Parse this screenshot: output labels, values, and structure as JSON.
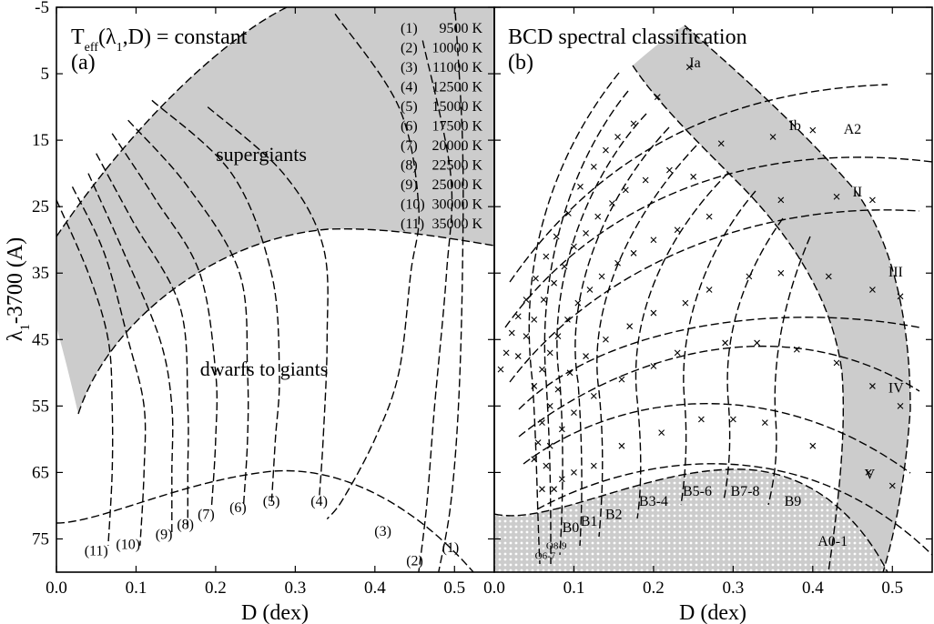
{
  "chart_data": [
    {
      "panel": "a",
      "type": "line",
      "title": "T_eff(λ1,D) = constant",
      "title_parts": {
        "T": "T",
        "sub": "eff",
        "args": "(λ",
        "sub1": "1",
        "rest": ",D) = constant"
      },
      "panel_label": "(a)",
      "xlabel": "D  (dex)",
      "ylabel": "λ1-3700  (A)",
      "ylabel_parts": {
        "lam": "λ",
        "sub": "1",
        "rest": "-3700  (A)"
      },
      "xlim": [
        0.0,
        0.55
      ],
      "ylim": [
        -5,
        80
      ],
      "y_inverted": true,
      "xticks": [
        0.0,
        0.1,
        0.2,
        0.3,
        0.4,
        0.5
      ],
      "xtick_labels": [
        "0.0",
        "0.1",
        "0.2",
        "0.3",
        "0.4",
        "0.5"
      ],
      "yticks": [
        -5,
        5,
        15,
        25,
        35,
        45,
        55,
        65,
        75
      ],
      "ytick_labels": [
        "-5",
        "5",
        "15",
        "25",
        "35",
        "45",
        "55",
        "65",
        "75"
      ],
      "regions": [
        {
          "label": "supergiants",
          "at": [
            0.3,
            19.5
          ]
        },
        {
          "label": "dwarfs to giants",
          "at": [
            0.27,
            50
          ]
        }
      ],
      "legend": [
        {
          "id": "(1)",
          "teff": "9500 K"
        },
        {
          "id": "(2)",
          "teff": "10000 K"
        },
        {
          "id": "(3)",
          "teff": "11000 K"
        },
        {
          "id": "(4)",
          "teff": "12500 K"
        },
        {
          "id": "(5)",
          "teff": "15000 K"
        },
        {
          "id": "(6)",
          "teff": "17500 K"
        },
        {
          "id": "(7)",
          "teff": "20000 K"
        },
        {
          "id": "(8)",
          "teff": "22500 K"
        },
        {
          "id": "(9)",
          "teff": "25000 K"
        },
        {
          "id": "(10)",
          "teff": "30000 K"
        },
        {
          "id": "(11)",
          "teff": "35000 K"
        }
      ],
      "series": [
        {
          "name": "(1)",
          "points": [
            [
              0.5,
              -6
            ],
            [
              0.51,
              15
            ],
            [
              0.51,
              35
            ],
            [
              0.505,
              55
            ],
            [
              0.495,
              70
            ],
            [
              0.48,
              80
            ]
          ]
        },
        {
          "name": "(2)",
          "points": [
            [
              0.46,
              0
            ],
            [
              0.495,
              20
            ],
            [
              0.49,
              35
            ],
            [
              0.475,
              55
            ],
            [
              0.465,
              70
            ],
            [
              0.455,
              80
            ]
          ]
        },
        {
          "name": "(3)",
          "points": [
            [
              0.35,
              -4
            ],
            [
              0.43,
              10
            ],
            [
              0.455,
              25
            ],
            [
              0.445,
              35
            ],
            [
              0.43,
              50
            ],
            [
              0.4,
              60
            ],
            [
              0.36,
              69
            ],
            [
              0.34,
              72
            ]
          ]
        },
        {
          "name": "(4)",
          "points": [
            [
              0.19,
              10
            ],
            [
              0.285,
              20
            ],
            [
              0.335,
              31
            ],
            [
              0.34,
              45
            ],
            [
              0.335,
              60
            ],
            [
              0.33,
              69
            ]
          ]
        },
        {
          "name": "(5)",
          "points": [
            [
              0.12,
              9
            ],
            [
              0.22,
              20
            ],
            [
              0.27,
              35
            ],
            [
              0.28,
              50
            ],
            [
              0.275,
              60
            ],
            [
              0.27,
              70
            ]
          ]
        },
        {
          "name": "(6)",
          "points": [
            [
              0.09,
              12
            ],
            [
              0.165,
              22
            ],
            [
              0.23,
              35
            ],
            [
              0.24,
              50
            ],
            [
              0.24,
              60
            ],
            [
              0.235,
              70
            ]
          ]
        },
        {
          "name": "(7)",
          "points": [
            [
              0.07,
              14
            ],
            [
              0.125,
              24
            ],
            [
              0.18,
              35
            ],
            [
              0.2,
              50
            ],
            [
              0.2,
              60
            ],
            [
              0.195,
              70
            ]
          ]
        },
        {
          "name": "(8)",
          "points": [
            [
              0.05,
              17
            ],
            [
              0.095,
              27
            ],
            [
              0.155,
              40
            ],
            [
              0.165,
              55
            ],
            [
              0.165,
              65
            ],
            [
              0.165,
              73
            ]
          ]
        },
        {
          "name": "(9)",
          "points": [
            [
              0.04,
              20
            ],
            [
              0.085,
              32
            ],
            [
              0.13,
              45
            ],
            [
              0.145,
              55
            ],
            [
              0.145,
              65
            ],
            [
              0.145,
              74
            ]
          ]
        },
        {
          "name": "(10)",
          "points": [
            [
              0.02,
              22
            ],
            [
              0.06,
              32
            ],
            [
              0.09,
              45
            ],
            [
              0.11,
              55
            ],
            [
              0.11,
              65
            ],
            [
              0.105,
              76
            ]
          ]
        },
        {
          "name": "(11)",
          "points": [
            [
              0.0,
              24
            ],
            [
              0.04,
              35
            ],
            [
              0.065,
              45
            ],
            [
              0.07,
              55
            ],
            [
              0.07,
              65
            ],
            [
              0.065,
              76
            ]
          ]
        }
      ],
      "curve_labels": [
        {
          "name": "(1)",
          "at": [
            0.495,
            77
          ]
        },
        {
          "name": "(2)",
          "at": [
            0.45,
            79
          ]
        },
        {
          "name": "(3)",
          "at": [
            0.41,
            74.5
          ]
        },
        {
          "name": "(4)",
          "at": [
            0.33,
            70
          ]
        },
        {
          "name": "(5)",
          "at": [
            0.27,
            70
          ]
        },
        {
          "name": "(6)",
          "at": [
            0.228,
            71
          ]
        },
        {
          "name": "(7)",
          "at": [
            0.188,
            72
          ]
        },
        {
          "name": "(8)",
          "at": [
            0.162,
            73.5
          ]
        },
        {
          "name": "(9)",
          "at": [
            0.135,
            75
          ]
        },
        {
          "name": "(10)",
          "at": [
            0.09,
            76.5
          ]
        },
        {
          "name": "(11)",
          "at": [
            0.05,
            77.5
          ]
        }
      ]
    },
    {
      "panel": "b",
      "type": "scatter",
      "title": "BCD spectral classification",
      "panel_label": "(b)",
      "xlabel": "D  (dex)",
      "xlim": [
        0.0,
        0.55
      ],
      "ylim": [
        -5,
        80
      ],
      "y_inverted": true,
      "xticks": [
        0.0,
        0.1,
        0.2,
        0.3,
        0.4,
        0.5
      ],
      "xtick_labels": [
        "0.0",
        "0.1",
        "0.2",
        "0.3",
        "0.4",
        "0.5"
      ],
      "luminosity_classes": [
        {
          "label": "Ia",
          "at": [
            0.245,
            4
          ]
        },
        {
          "label": "Ib",
          "at": [
            0.37,
            13.5
          ]
        },
        {
          "label": "II",
          "at": [
            0.45,
            23.5
          ]
        },
        {
          "label": "III",
          "at": [
            0.495,
            35.5
          ]
        },
        {
          "label": "IV",
          "at": [
            0.495,
            53
          ]
        },
        {
          "label": "V",
          "at": [
            0.465,
            66
          ]
        }
      ],
      "spectral_types": [
        {
          "label": "O6-7",
          "at": [
            0.064,
            78
          ]
        },
        {
          "label": "O8-9",
          "at": [
            0.078,
            76.5
          ]
        },
        {
          "label": "B0",
          "at": [
            0.096,
            74
          ]
        },
        {
          "label": "B1",
          "at": [
            0.119,
            73
          ]
        },
        {
          "label": "B2",
          "at": [
            0.15,
            72
          ]
        },
        {
          "label": "B3-4",
          "at": [
            0.2,
            70
          ]
        },
        {
          "label": "B5-6",
          "at": [
            0.255,
            68.5
          ]
        },
        {
          "label": "B7-8",
          "at": [
            0.315,
            68.5
          ]
        },
        {
          "label": "B9",
          "at": [
            0.375,
            70
          ]
        },
        {
          "label": "A0-1",
          "at": [
            0.425,
            76
          ]
        },
        {
          "label": "A2",
          "at": [
            0.45,
            14
          ]
        }
      ],
      "points": [
        [
          0.245,
          4.0
        ],
        [
          0.285,
          15.5
        ],
        [
          0.205,
          8.5
        ],
        [
          0.175,
          12.5
        ],
        [
          0.155,
          14.5
        ],
        [
          0.14,
          16.5
        ],
        [
          0.125,
          19
        ],
        [
          0.108,
          22
        ],
        [
          0.093,
          26
        ],
        [
          0.078,
          29.5
        ],
        [
          0.065,
          32.5
        ],
        [
          0.052,
          35.8
        ],
        [
          0.04,
          39
        ],
        [
          0.03,
          41.5
        ],
        [
          0.022,
          44
        ],
        [
          0.015,
          47
        ],
        [
          0.008,
          49.5
        ],
        [
          0.35,
          14.5
        ],
        [
          0.4,
          13.5
        ],
        [
          0.25,
          20.5
        ],
        [
          0.22,
          19.5
        ],
        [
          0.19,
          21
        ],
        [
          0.165,
          22.5
        ],
        [
          0.148,
          24.5
        ],
        [
          0.13,
          26.5
        ],
        [
          0.115,
          29
        ],
        [
          0.1,
          31
        ],
        [
          0.088,
          34
        ],
        [
          0.075,
          36.5
        ],
        [
          0.062,
          39
        ],
        [
          0.05,
          42
        ],
        [
          0.04,
          44.5
        ],
        [
          0.03,
          47.5
        ],
        [
          0.36,
          24
        ],
        [
          0.43,
          23.5
        ],
        [
          0.475,
          24
        ],
        [
          0.27,
          26.5
        ],
        [
          0.23,
          28.5
        ],
        [
          0.2,
          30
        ],
        [
          0.175,
          32
        ],
        [
          0.155,
          33.5
        ],
        [
          0.135,
          35.5
        ],
        [
          0.12,
          37.5
        ],
        [
          0.105,
          39.5
        ],
        [
          0.092,
          42
        ],
        [
          0.08,
          44.5
        ],
        [
          0.07,
          47
        ],
        [
          0.06,
          49.5
        ],
        [
          0.05,
          52
        ],
        [
          0.36,
          35
        ],
        [
          0.42,
          35.5
        ],
        [
          0.475,
          37.5
        ],
        [
          0.51,
          38.5
        ],
        [
          0.32,
          35.5
        ],
        [
          0.27,
          37.5
        ],
        [
          0.24,
          39.5
        ],
        [
          0.2,
          41
        ],
        [
          0.17,
          43
        ],
        [
          0.14,
          45
        ],
        [
          0.115,
          47.5
        ],
        [
          0.095,
          50
        ],
        [
          0.08,
          52.5
        ],
        [
          0.07,
          55
        ],
        [
          0.06,
          57.5
        ],
        [
          0.055,
          60.5
        ],
        [
          0.05,
          63
        ],
        [
          0.43,
          48.5
        ],
        [
          0.38,
          46.5
        ],
        [
          0.33,
          45.5
        ],
        [
          0.29,
          45.5
        ],
        [
          0.23,
          47
        ],
        [
          0.2,
          49
        ],
        [
          0.16,
          51
        ],
        [
          0.125,
          53.5
        ],
        [
          0.1,
          56
        ],
        [
          0.085,
          58.5
        ],
        [
          0.07,
          61
        ],
        [
          0.065,
          64
        ],
        [
          0.475,
          52
        ],
        [
          0.51,
          55
        ],
        [
          0.4,
          61
        ],
        [
          0.34,
          57.5
        ],
        [
          0.3,
          57
        ],
        [
          0.26,
          57
        ],
        [
          0.21,
          59
        ],
        [
          0.16,
          61
        ],
        [
          0.125,
          64
        ],
        [
          0.1,
          65
        ],
        [
          0.085,
          66
        ],
        [
          0.075,
          67.5
        ],
        [
          0.06,
          67.5
        ],
        [
          0.47,
          65
        ],
        [
          0.5,
          67
        ]
      ]
    }
  ]
}
